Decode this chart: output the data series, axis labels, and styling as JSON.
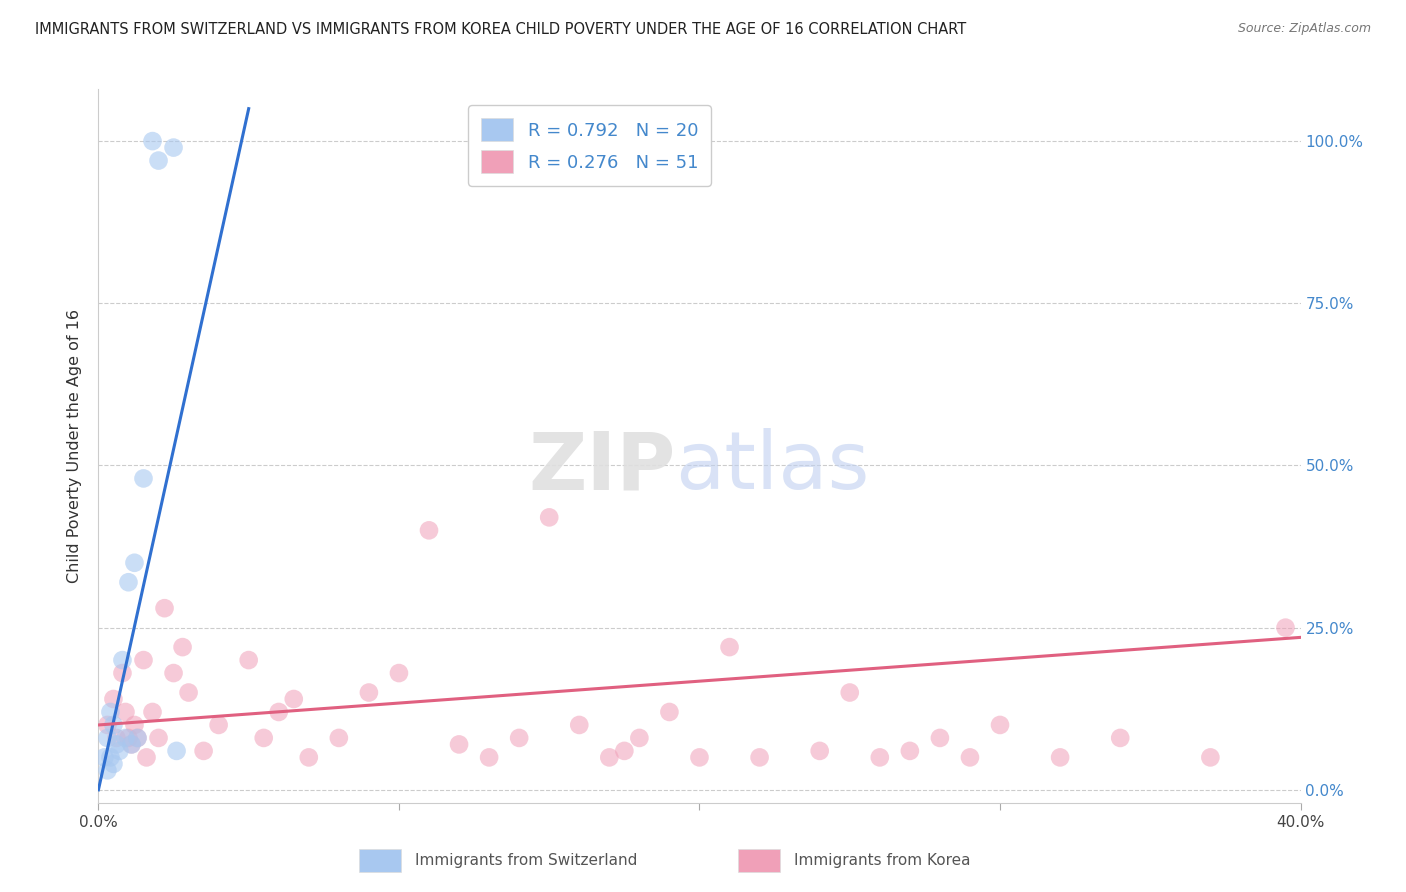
{
  "title": "IMMIGRANTS FROM SWITZERLAND VS IMMIGRANTS FROM KOREA CHILD POVERTY UNDER THE AGE OF 16 CORRELATION CHART",
  "source": "Source: ZipAtlas.com",
  "ylabel": "Child Poverty Under the Age of 16",
  "ytick_labels": [
    "0.0%",
    "25.0%",
    "50.0%",
    "75.0%",
    "100.0%"
  ],
  "ytick_values": [
    0,
    25,
    50,
    75,
    100
  ],
  "xlim": [
    0,
    40
  ],
  "ylim": [
    -2,
    108
  ],
  "legend_swiss_R": "0.792",
  "legend_swiss_N": "20",
  "legend_korea_R": "0.276",
  "legend_korea_N": "51",
  "swiss_color": "#a8c8f0",
  "korea_color": "#f0a0b8",
  "swiss_line_color": "#3070d0",
  "korea_line_color": "#e06080",
  "swiss_scatter_x": [
    0.2,
    0.3,
    0.4,
    0.5,
    0.6,
    0.7,
    0.8,
    0.9,
    1.0,
    1.1,
    1.2,
    1.3,
    1.5,
    1.8,
    2.0,
    2.5,
    2.6,
    0.3,
    0.4,
    0.5
  ],
  "swiss_scatter_y": [
    5,
    8,
    12,
    10,
    7,
    6,
    20,
    8,
    32,
    7,
    35,
    8,
    48,
    100,
    97,
    99,
    6,
    3,
    5,
    4
  ],
  "korea_scatter_x": [
    0.3,
    0.5,
    0.6,
    0.8,
    0.9,
    1.0,
    1.1,
    1.2,
    1.3,
    1.5,
    1.6,
    1.8,
    2.0,
    2.2,
    2.5,
    2.8,
    3.0,
    3.5,
    4.0,
    5.0,
    5.5,
    6.0,
    6.5,
    7.0,
    8.0,
    9.0,
    10.0,
    11.0,
    12.0,
    13.0,
    14.0,
    15.0,
    16.0,
    17.0,
    17.5,
    18.0,
    19.0,
    20.0,
    21.0,
    22.0,
    24.0,
    25.0,
    26.0,
    27.0,
    28.0,
    29.0,
    30.0,
    32.0,
    34.0,
    37.0,
    39.5
  ],
  "korea_scatter_y": [
    10,
    14,
    8,
    18,
    12,
    8,
    7,
    10,
    8,
    20,
    5,
    12,
    8,
    28,
    18,
    22,
    15,
    6,
    10,
    20,
    8,
    12,
    14,
    5,
    8,
    15,
    18,
    40,
    7,
    5,
    8,
    42,
    10,
    5,
    6,
    8,
    12,
    5,
    22,
    5,
    6,
    15,
    5,
    6,
    8,
    5,
    10,
    5,
    8,
    5,
    25
  ],
  "swiss_trend_x": [
    0.0,
    5.0
  ],
  "swiss_trend_y": [
    0.0,
    105.0
  ],
  "korea_trend_x": [
    0.0,
    40.0
  ],
  "korea_trend_y": [
    10.0,
    23.5
  ]
}
